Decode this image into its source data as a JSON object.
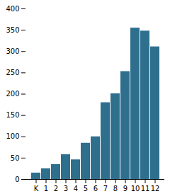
{
  "chart_data": {
    "type": "bar",
    "categories": [
      "K",
      "1",
      "2",
      "3",
      "4",
      "5",
      "6",
      "7",
      "8",
      "9",
      "10",
      "11",
      "12"
    ],
    "values": [
      15,
      25,
      35,
      58,
      46,
      85,
      100,
      180,
      201,
      253,
      355,
      348,
      311
    ],
    "color": "#2e6f8e",
    "ylim": [
      0,
      400
    ],
    "yticks": [
      0,
      50,
      100,
      150,
      200,
      250,
      300,
      350,
      400
    ],
    "grid": false
  }
}
